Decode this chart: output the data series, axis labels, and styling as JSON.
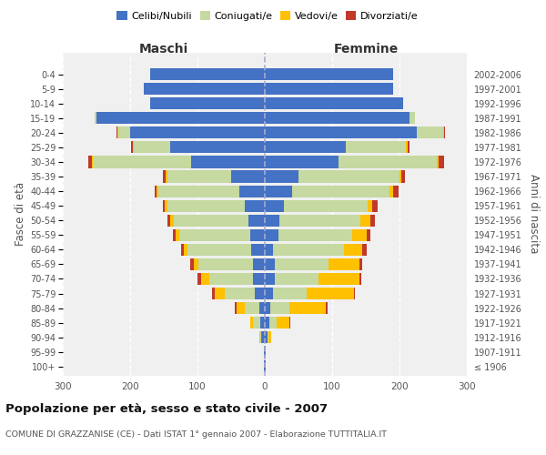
{
  "age_groups": [
    "100+",
    "95-99",
    "90-94",
    "85-89",
    "80-84",
    "75-79",
    "70-74",
    "65-69",
    "60-64",
    "55-59",
    "50-54",
    "45-49",
    "40-44",
    "35-39",
    "30-34",
    "25-29",
    "20-24",
    "15-19",
    "10-14",
    "5-9",
    "0-4"
  ],
  "birth_years": [
    "≤ 1906",
    "1907-1911",
    "1912-1916",
    "1917-1921",
    "1922-1926",
    "1927-1931",
    "1932-1936",
    "1937-1941",
    "1942-1946",
    "1947-1951",
    "1952-1956",
    "1957-1961",
    "1962-1966",
    "1967-1971",
    "1972-1976",
    "1977-1981",
    "1982-1986",
    "1987-1991",
    "1992-1996",
    "1997-2001",
    "2002-2006"
  ],
  "maschi_celibe": [
    1,
    2,
    5,
    7,
    8,
    15,
    18,
    18,
    20,
    22,
    25,
    30,
    38,
    50,
    110,
    140,
    200,
    250,
    170,
    180,
    170
  ],
  "maschi_coniugato": [
    0,
    0,
    2,
    10,
    22,
    45,
    65,
    80,
    95,
    105,
    110,
    115,
    120,
    95,
    145,
    55,
    18,
    3,
    0,
    0,
    0
  ],
  "maschi_vedovo": [
    0,
    0,
    1,
    4,
    12,
    15,
    12,
    8,
    5,
    5,
    5,
    3,
    3,
    2,
    2,
    1,
    1,
    0,
    0,
    0,
    0
  ],
  "maschi_divorziato": [
    0,
    0,
    0,
    1,
    3,
    3,
    5,
    5,
    5,
    5,
    5,
    3,
    3,
    5,
    5,
    3,
    1,
    0,
    0,
    0,
    0
  ],
  "femmine_nubile": [
    1,
    2,
    4,
    7,
    8,
    12,
    15,
    15,
    12,
    20,
    22,
    28,
    40,
    50,
    110,
    120,
    225,
    215,
    205,
    190,
    190
  ],
  "femmine_coniugata": [
    0,
    0,
    2,
    10,
    28,
    50,
    65,
    80,
    105,
    110,
    120,
    125,
    145,
    150,
    145,
    90,
    40,
    8,
    0,
    0,
    0
  ],
  "femmine_vedova": [
    0,
    0,
    4,
    20,
    55,
    70,
    60,
    45,
    28,
    22,
    15,
    7,
    5,
    3,
    3,
    2,
    1,
    0,
    0,
    0,
    0
  ],
  "femmine_divorziata": [
    0,
    0,
    0,
    1,
    2,
    2,
    3,
    5,
    7,
    5,
    7,
    7,
    8,
    5,
    8,
    3,
    2,
    0,
    0,
    0,
    0
  ],
  "color_celibe": "#4472c4",
  "color_coniugato": "#c5d9a0",
  "color_vedovo": "#ffc000",
  "color_divorziato": "#c0392b",
  "xlim": 300,
  "title_main": "Popolazione per età, sesso e stato civile - 2007",
  "title_sub": "COMUNE DI GRAZZANISE (CE) - Dati ISTAT 1° gennaio 2007 - Elaborazione TUTTITALIA.IT",
  "ylabel_left": "Fasce di età",
  "ylabel_right": "Anni di nascita",
  "label_maschi": "Maschi",
  "label_femmine": "Femmine",
  "bg_color": "#f0f0f0",
  "legend_labels": [
    "Celibi/Nubili",
    "Coniugati/e",
    "Vedovi/e",
    "Divorziati/e"
  ]
}
